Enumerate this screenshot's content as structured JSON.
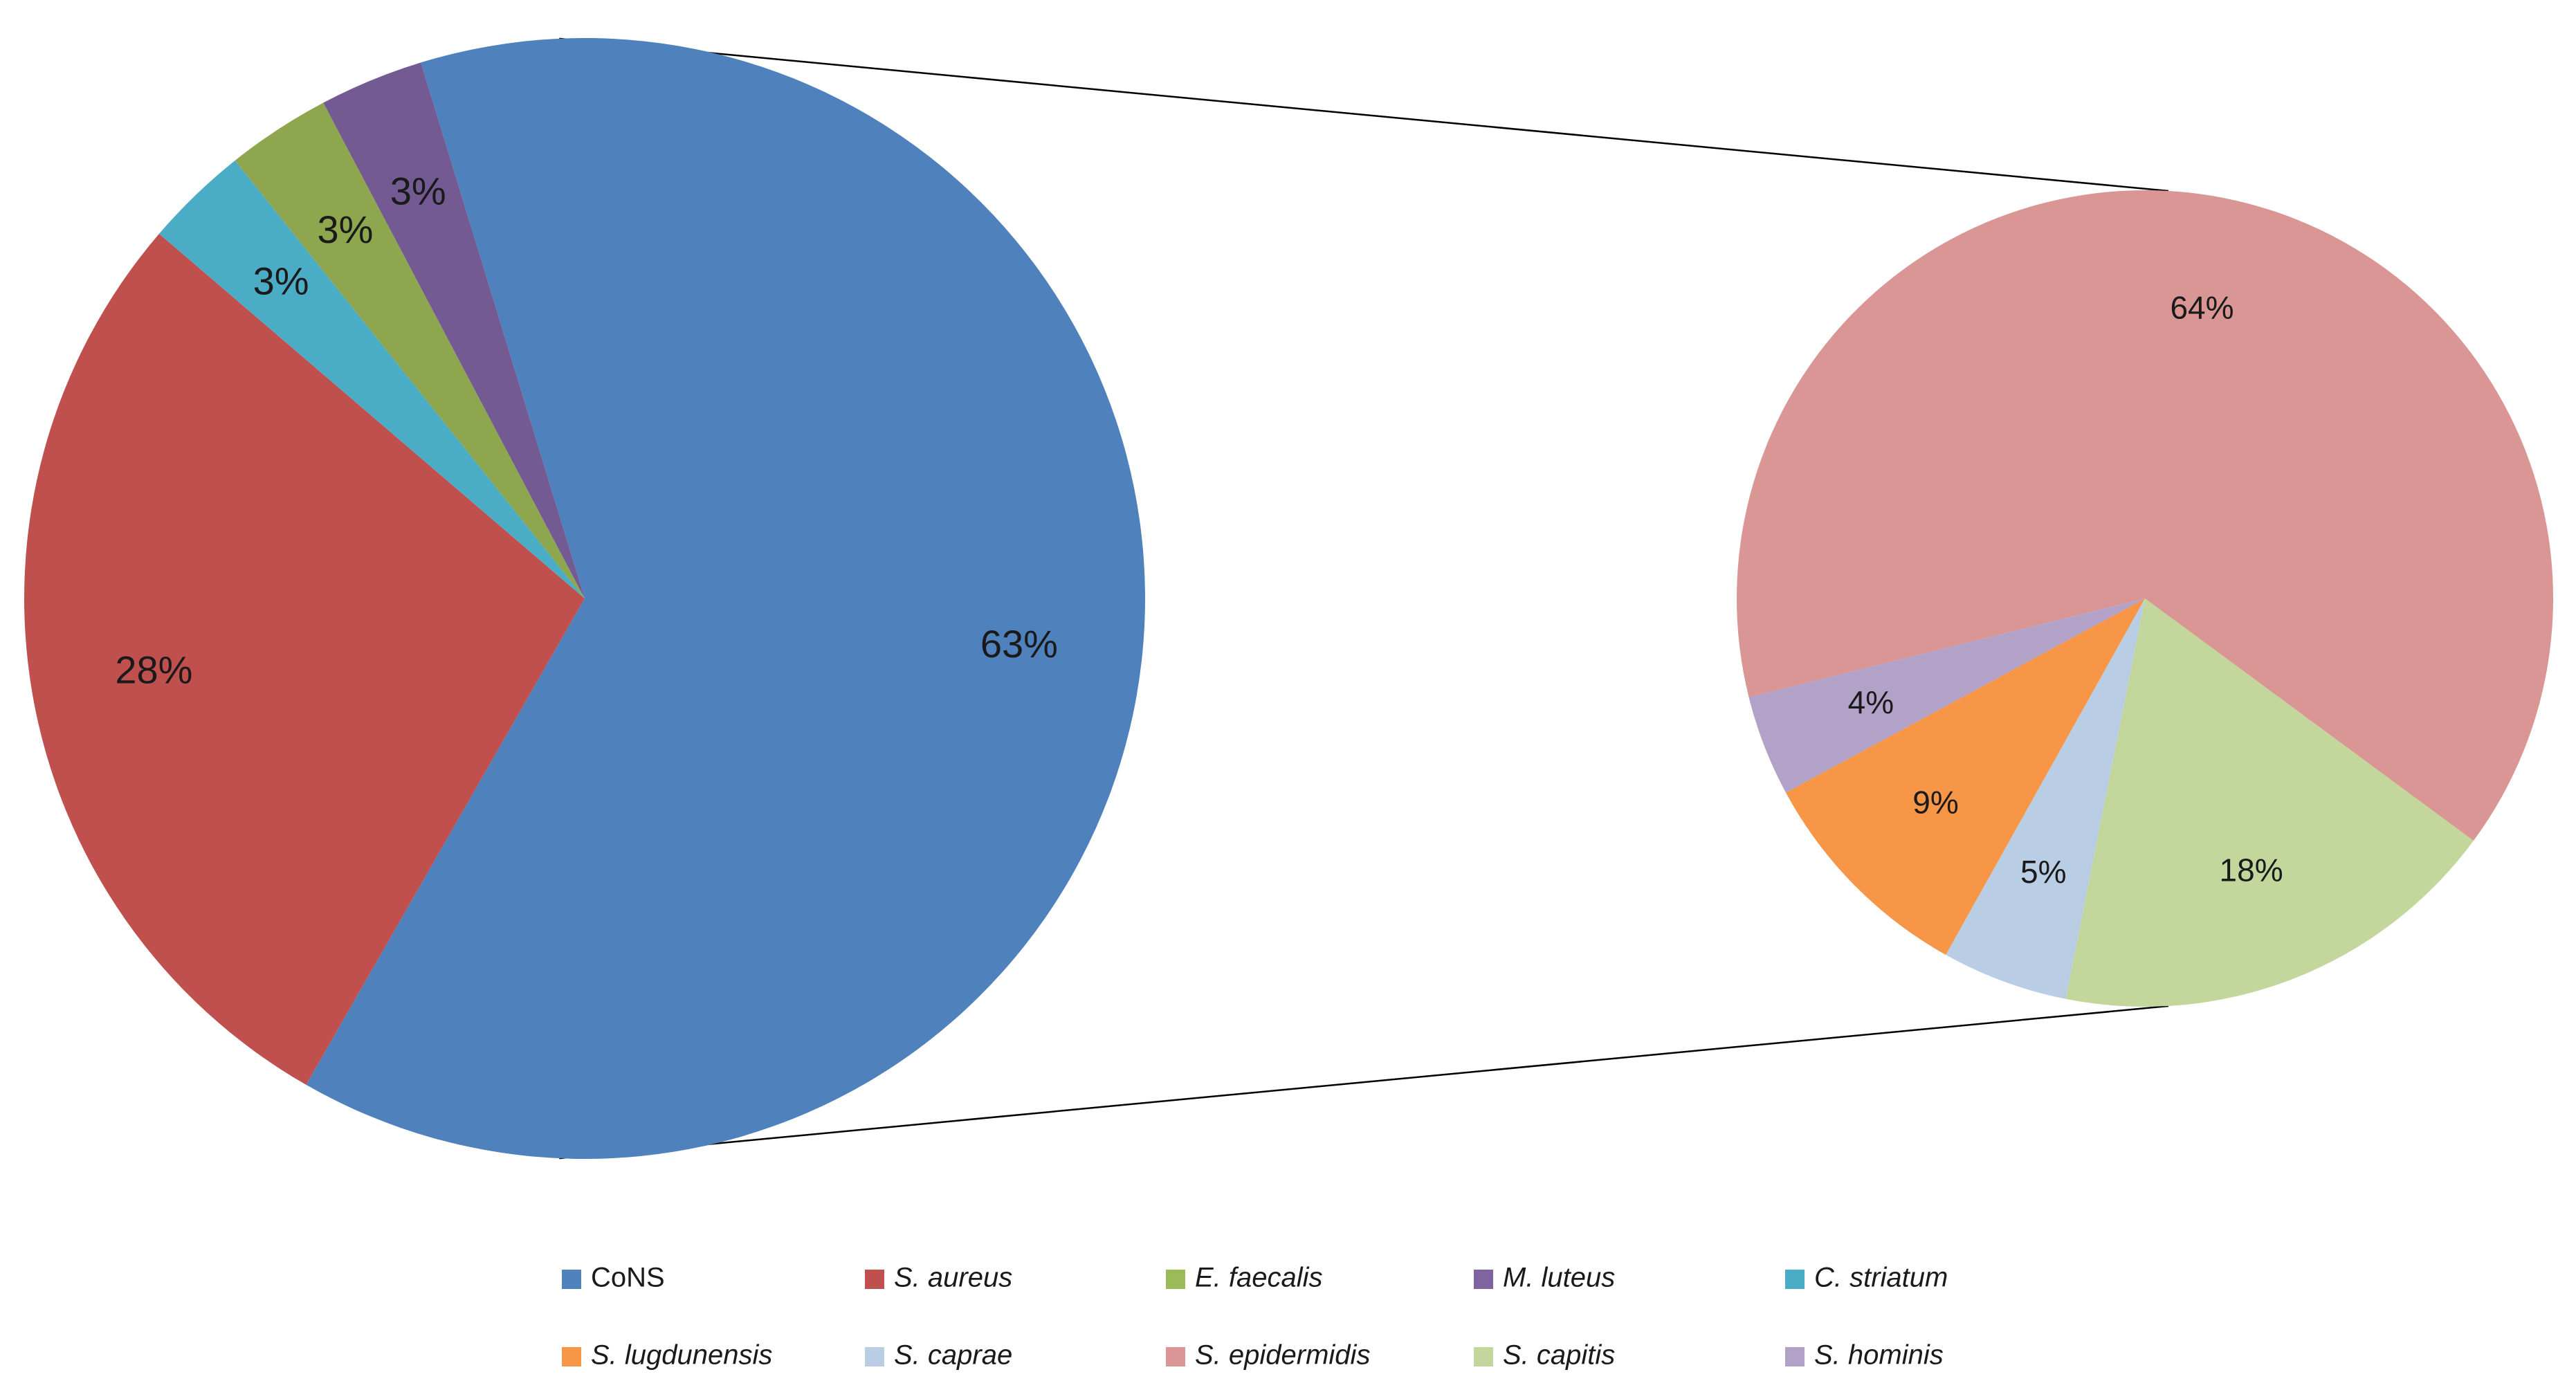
{
  "chart_data": {
    "type": "pie",
    "subtype": "pie-of-pie",
    "title": "",
    "pies": [
      {
        "name": "main",
        "slices": [
          {
            "label": "CoNS",
            "value": 63,
            "text": "63%",
            "color": "#4f81bd"
          },
          {
            "label": "S. aureus",
            "value": 28,
            "text": "28%",
            "color": "#c0504d"
          },
          {
            "label": "C. striatum",
            "value": 3,
            "text": "3%",
            "color": "#4bacc6"
          },
          {
            "label": "E. faecalis",
            "value": 3,
            "text": "3%",
            "color": "#8ea74f"
          },
          {
            "label": "M. luteus",
            "value": 3,
            "text": "3%",
            "color": "#735a93"
          }
        ]
      },
      {
        "name": "secondary",
        "breakdown_of": "CoNS",
        "slices": [
          {
            "label": "S. epidermidis",
            "value": 64,
            "text": "64%",
            "color": "#d99694"
          },
          {
            "label": "S. capitis",
            "value": 18,
            "text": "18%",
            "color": "#c3d69b"
          },
          {
            "label": "S. caprae",
            "value": 5,
            "text": "5%",
            "color": "#b9cde5"
          },
          {
            "label": "S. lugdunensis",
            "value": 9,
            "text": "9%",
            "color": "#f79646"
          },
          {
            "label": "S. hominis",
            "value": 4,
            "text": "4%",
            "color": "#b3a2c7"
          }
        ]
      }
    ],
    "legend": {
      "position": "bottom",
      "items": [
        {
          "label": "CoNS",
          "italic": false,
          "color": "#4f81bd"
        },
        {
          "label": "S. aureus",
          "italic": true,
          "color": "#c0504d"
        },
        {
          "label": "E. faecalis",
          "italic": true,
          "color": "#9bbb59"
        },
        {
          "label": "M. luteus",
          "italic": true,
          "color": "#8064a2"
        },
        {
          "label": "C. striatum",
          "italic": true,
          "color": "#4bacc6"
        },
        {
          "label": "S. lugdunensis",
          "italic": true,
          "color": "#f79646"
        },
        {
          "label": "S. caprae",
          "italic": true,
          "color": "#b9cde5"
        },
        {
          "label": "S. epidermidis",
          "italic": true,
          "color": "#d99694"
        },
        {
          "label": "S. capitis",
          "italic": true,
          "color": "#c3d69b"
        },
        {
          "label": "S. hominis",
          "italic": true,
          "color": "#b3a2c7"
        }
      ]
    }
  }
}
